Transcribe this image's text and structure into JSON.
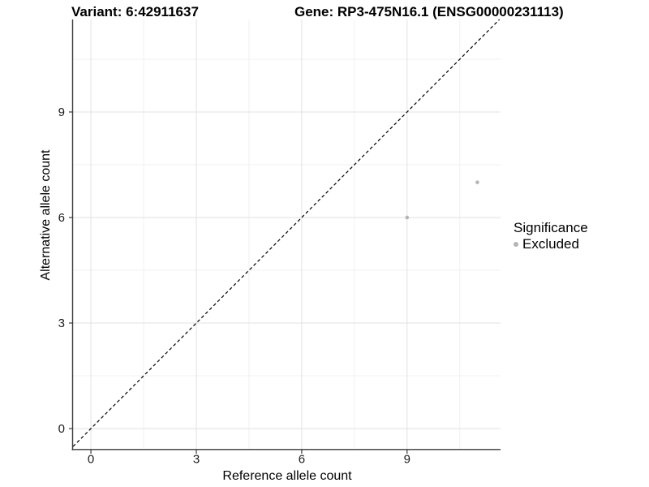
{
  "figure": {
    "title_left": "Variant: 6:42911637",
    "title_right": "Gene: RP3-475N16.1 (ENSG00000231113)"
  },
  "chart_data": {
    "type": "scatter",
    "title": "Variant: 6:42911637   Gene: RP3-475N16.1 (ENSG00000231113)",
    "xlabel": "Reference allele count",
    "ylabel": "Alternative allele count",
    "xlim": [
      -0.51,
      11.66
    ],
    "ylim": [
      -0.6,
      11.63
    ],
    "xticks": [
      0,
      3,
      6,
      9
    ],
    "yticks": [
      0,
      3,
      6,
      9
    ],
    "x_minor": [
      1.5,
      4.5,
      7.5,
      10.5
    ],
    "y_minor": [
      1.5,
      4.5,
      7.5,
      10.5
    ],
    "grid": true,
    "identity_line": {
      "equation": "y = x",
      "style": "dashed",
      "color": "#000000"
    },
    "series": [
      {
        "name": "Excluded",
        "color": "#b5b5b5",
        "points": [
          [
            9,
            6
          ],
          [
            11,
            7
          ]
        ]
      }
    ],
    "legend": {
      "title": "Significance",
      "position": "right",
      "entries": [
        {
          "label": "Excluded",
          "color": "#b5b5b5"
        }
      ]
    },
    "colors": {
      "background": "#ffffff",
      "grid_major": "#e2e2e2",
      "grid_minor": "#f0f0f0",
      "axis": "#3a3a3a",
      "tick_label": "#1a1a1a",
      "point": "#b5b5b5"
    }
  }
}
